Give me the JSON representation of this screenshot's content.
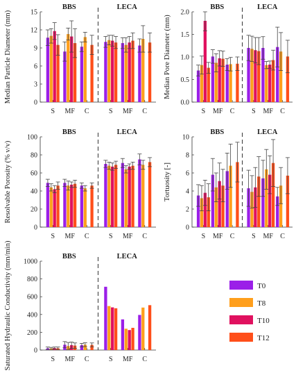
{
  "legend": {
    "entries": [
      {
        "name": "T0",
        "color": "#9b1fe8"
      },
      {
        "name": "T8",
        "color": "#ff9f1c"
      },
      {
        "name": "T10",
        "color": "#e0115f"
      },
      {
        "name": "T12",
        "color": "#ff4f1a"
      }
    ]
  },
  "chart_data": [
    {
      "type": "bar",
      "ylabel": "Median Particle Diameter (mm)",
      "ylim": [
        0,
        15
      ],
      "yticks": [
        0,
        3,
        6,
        9,
        12,
        15
      ],
      "groups": [
        "BBS",
        "LECA"
      ],
      "categories": [
        "S",
        "MF",
        "C"
      ],
      "values": {
        "BBS": {
          "S": [
            {
              "v": 10.7,
              "e": 1.3
            },
            {
              "v": 11.0,
              "e": 1.2
            },
            {
              "v": 11.8,
              "e": 1.4
            },
            {
              "v": 9.5,
              "e": 1.7
            }
          ],
          "MF": [
            {
              "v": 8.4,
              "e": 1.6
            },
            {
              "v": 11.3,
              "e": 1.0
            },
            {
              "v": 10.9,
              "e": 2.6
            },
            {
              "v": 9.8,
              "e": 2.4
            }
          ],
          "C": [
            {
              "v": 9.2,
              "e": 0.8
            },
            {
              "v": 10.8,
              "e": 0.8
            },
            null,
            {
              "v": 9.5,
              "e": 1.6
            }
          ]
        },
        "LECA": {
          "S": [
            {
              "v": 10.0,
              "e": 0.9
            },
            {
              "v": 10.3,
              "e": 0.8
            },
            {
              "v": 10.2,
              "e": 0.9
            },
            {
              "v": 9.9,
              "e": 1.0
            }
          ],
          "MF": [
            {
              "v": 9.8,
              "e": 0.9
            },
            {
              "v": 9.5,
              "e": 1.2
            },
            {
              "v": 9.9,
              "e": 1.0
            },
            {
              "v": 10.2,
              "e": 1.3
            }
          ],
          "C": [
            {
              "v": 9.4,
              "e": 1.1
            },
            {
              "v": 10.5,
              "e": 2.2
            },
            null,
            {
              "v": 9.9,
              "e": 1.6
            }
          ]
        }
      }
    },
    {
      "type": "bar",
      "ylabel": "Median Pore Diameter (mm)",
      "ylim": [
        0,
        2
      ],
      "yticks": [
        0,
        0.5,
        1.0,
        1.5,
        2.0
      ],
      "groups": [
        "BBS",
        "LECA"
      ],
      "categories": [
        "S",
        "MF",
        "C"
      ],
      "values": {
        "BBS": {
          "S": [
            {
              "v": 0.7,
              "e": 0.12
            },
            {
              "v": 0.82,
              "e": 0.2
            },
            {
              "v": 1.8,
              "e": 0.22
            },
            {
              "v": 0.76,
              "e": 0.12
            }
          ],
          "MF": [
            {
              "v": 1.01,
              "e": 0.15
            },
            {
              "v": 0.87,
              "e": 0.2
            },
            {
              "v": 0.97,
              "e": 0.17
            },
            {
              "v": 0.96,
              "e": 0.17
            }
          ],
          "C": [
            {
              "v": 0.83,
              "e": 0.13
            },
            {
              "v": 0.84,
              "e": 0.15
            },
            null,
            {
              "v": 0.85,
              "e": 0.15
            }
          ]
        },
        "LECA": {
          "S": [
            {
              "v": 1.2,
              "e": 0.28
            },
            {
              "v": 1.18,
              "e": 0.28
            },
            {
              "v": 1.15,
              "e": 0.28
            },
            {
              "v": 1.13,
              "e": 0.3
            }
          ],
          "MF": [
            {
              "v": 1.2,
              "e": 0.25
            },
            {
              "v": 0.82,
              "e": 0.08
            },
            {
              "v": 0.83,
              "e": 0.08
            },
            {
              "v": 0.93,
              "e": 0.22
            }
          ],
          "C": [
            {
              "v": 1.22,
              "e": 0.44
            },
            {
              "v": 1.12,
              "e": 0.42
            },
            null,
            {
              "v": 1.01,
              "e": 0.36
            }
          ]
        }
      }
    },
    {
      "type": "bar",
      "ylabel": "Resolvable Porosity (% v/v)",
      "ylim": [
        0,
        100
      ],
      "yticks": [
        0,
        20,
        40,
        60,
        80,
        100
      ],
      "groups": [
        "BBS",
        "LECA"
      ],
      "categories": [
        "S",
        "MF",
        "C"
      ],
      "values": {
        "BBS": {
          "S": [
            {
              "v": 49,
              "e": 4
            },
            {
              "v": 44,
              "e": 4
            },
            {
              "v": 42,
              "e": 4
            },
            {
              "v": 46,
              "e": 4
            }
          ],
          "MF": [
            {
              "v": 49,
              "e": 4
            },
            {
              "v": 46,
              "e": 5
            },
            {
              "v": 47,
              "e": 3
            },
            {
              "v": 48,
              "e": 4
            }
          ],
          "C": [
            {
              "v": 46,
              "e": 3
            },
            {
              "v": 43,
              "e": 3
            },
            null,
            {
              "v": 46,
              "e": 3
            }
          ]
        },
        "LECA": {
          "S": [
            {
              "v": 70,
              "e": 4
            },
            {
              "v": 68,
              "e": 4
            },
            {
              "v": 67,
              "e": 4
            },
            {
              "v": 69,
              "e": 4
            }
          ],
          "MF": [
            {
              "v": 71,
              "e": 5
            },
            {
              "v": 64,
              "e": 4
            },
            {
              "v": 67,
              "e": 3
            },
            {
              "v": 68,
              "e": 4
            }
          ],
          "C": [
            {
              "v": 75,
              "e": 6
            },
            {
              "v": 69,
              "e": 5
            },
            null,
            {
              "v": 72,
              "e": 5
            }
          ]
        }
      }
    },
    {
      "type": "bar",
      "ylabel": "Tortuosity [-]",
      "ylim": [
        0,
        10
      ],
      "yticks": [
        0,
        2,
        4,
        6,
        8,
        10
      ],
      "groups": [
        "BBS",
        "LECA"
      ],
      "categories": [
        "S",
        "MF",
        "C"
      ],
      "values": {
        "BBS": {
          "S": [
            {
              "v": 3.5,
              "e": 1.2
            },
            {
              "v": 3.2,
              "e": 1.4
            },
            {
              "v": 3.8,
              "e": 1.4
            },
            {
              "v": 3.3,
              "e": 1.5
            }
          ],
          "MF": [
            {
              "v": 5.8,
              "e": 1.8
            },
            {
              "v": 4.4,
              "e": 1.6
            },
            {
              "v": 5.1,
              "e": 2.0
            },
            {
              "v": 4.6,
              "e": 1.8
            }
          ],
          "C": [
            {
              "v": 6.2,
              "e": 2.0
            },
            {
              "v": 6.8,
              "e": 2.4
            },
            null,
            {
              "v": 7.2,
              "e": 2.2
            }
          ]
        },
        "LECA": {
          "S": [
            {
              "v": 4.3,
              "e": 2.0
            },
            {
              "v": 3.9,
              "e": 1.8
            },
            {
              "v": 4.4,
              "e": 2.2
            },
            {
              "v": 5.6,
              "e": 2.2
            }
          ],
          "MF": [
            {
              "v": 5.4,
              "e": 2.0
            },
            {
              "v": 6.4,
              "e": 2.2
            },
            {
              "v": 5.8,
              "e": 2.1
            },
            {
              "v": 7.1,
              "e": 2.6
            }
          ],
          "C": [
            {
              "v": 3.4,
              "e": 1.0
            },
            {
              "v": 4.6,
              "e": 2.0
            },
            null,
            {
              "v": 5.7,
              "e": 2.0
            }
          ]
        }
      }
    },
    {
      "type": "bar",
      "ylabel": "Saturated Hydraulic Conductivity (mm/min)",
      "ylim": [
        0,
        1000
      ],
      "yticks": [
        0,
        200,
        400,
        600,
        800,
        1000
      ],
      "groups": [
        "BBS",
        "LECA"
      ],
      "categories": [
        "S",
        "MF",
        "C"
      ],
      "values": {
        "BBS": {
          "S": [
            {
              "v": 20,
              "e": 14
            },
            {
              "v": 18,
              "e": 12
            },
            {
              "v": 22,
              "e": 12
            },
            {
              "v": 20,
              "e": 14
            }
          ],
          "MF": [
            {
              "v": 60,
              "e": 35
            },
            {
              "v": 45,
              "e": 40
            },
            {
              "v": 55,
              "e": 35
            },
            {
              "v": 50,
              "e": 30
            }
          ],
          "C": [
            {
              "v": 55,
              "e": 20
            },
            {
              "v": 60,
              "e": 22
            },
            null,
            {
              "v": 58,
              "e": 22
            }
          ]
        },
        "LECA": {
          "S": [
            {
              "v": 712,
              "e": 0
            },
            {
              "v": 495,
              "e": 0
            },
            {
              "v": 480,
              "e": 0
            },
            {
              "v": 470,
              "e": 0
            }
          ],
          "MF": [
            {
              "v": 345,
              "e": 0
            },
            {
              "v": 240,
              "e": 0
            },
            {
              "v": 225,
              "e": 0
            },
            {
              "v": 250,
              "e": 0
            }
          ],
          "C": [
            {
              "v": 395,
              "e": 0
            },
            {
              "v": 478,
              "e": 0
            },
            null,
            {
              "v": 505,
              "e": 0
            }
          ]
        }
      }
    }
  ]
}
